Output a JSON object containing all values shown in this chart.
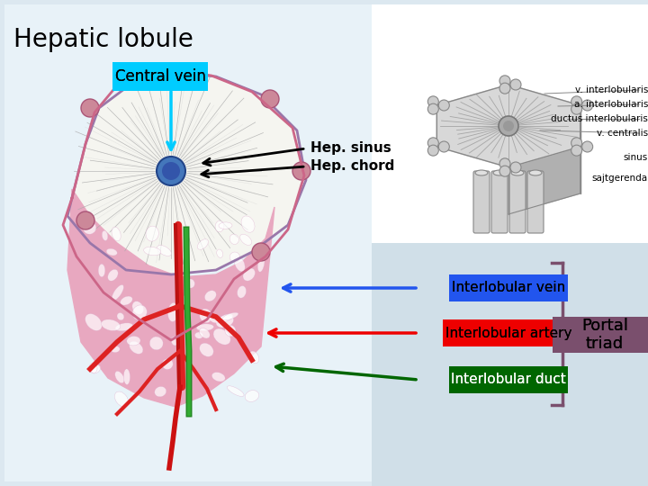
{
  "title": "Hepatic lobule",
  "title_fontsize": 20,
  "bg_color": "#dce8f0",
  "left_panel_bg": "#e8f2f8",
  "right_top_bg": "#ffffff",
  "right_bot_bg": "#d0dfe8",
  "central_vein_box_color": "#00ccff",
  "central_vein_text": "Central vein",
  "hep_sinus_text": "Hep. sinus",
  "hep_chord_text": "Hep. chord",
  "interlobular_vein_text": "Interlobular vein",
  "interlobular_vein_color": "#2255ee",
  "interlobular_artery_text": "Interlobular artery",
  "interlobular_artery_color": "#ee0000",
  "interlobular_duct_text": "Interlobular duct",
  "interlobular_duct_color": "#006600",
  "portal_triad_text": "Portal\ntriad",
  "portal_triad_color": "#7a4f6d",
  "right_labels": [
    "v. interlobularis",
    "a. interlobularis",
    "ductus interlobularis",
    "v. centralis",
    "sinus",
    "sajtgerenda"
  ],
  "brace_color": "#7a4f6d"
}
